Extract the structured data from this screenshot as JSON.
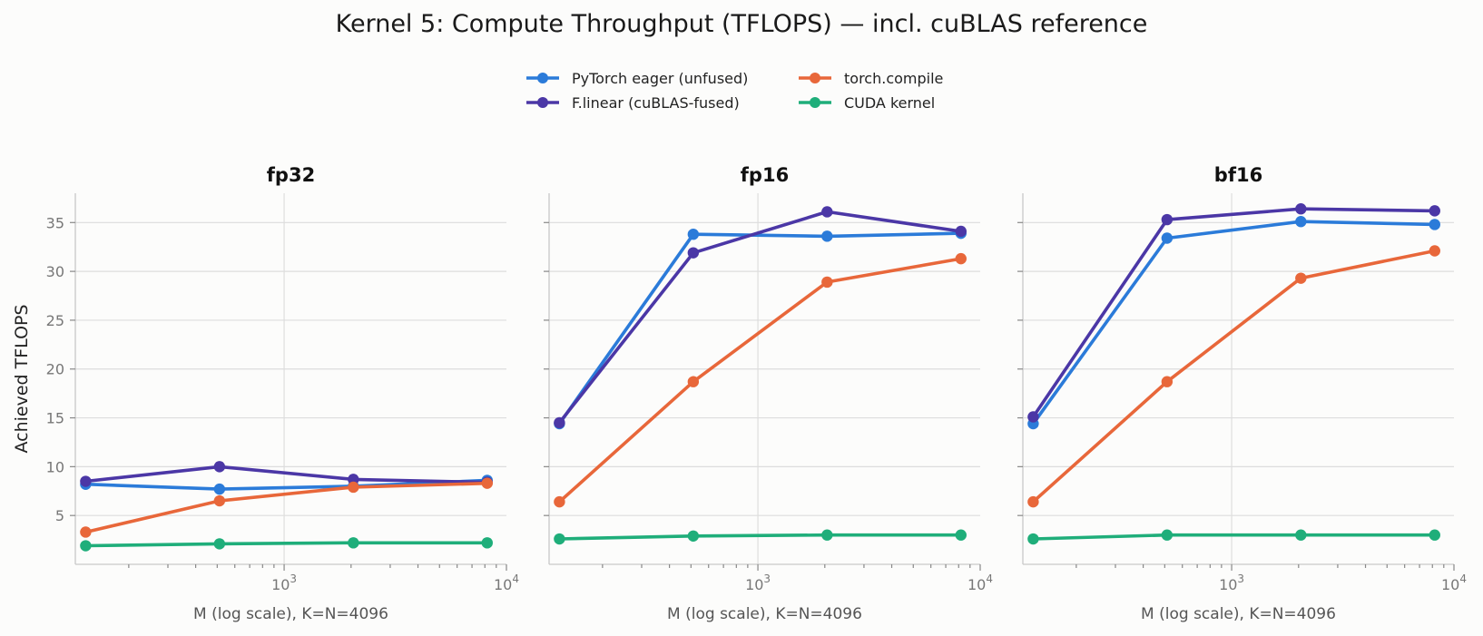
{
  "title": "Kernel 5: Compute Throughput (TFLOPS) — incl. cuBLAS reference",
  "legend": {
    "placement": "top-center",
    "columns": 2,
    "entries": [
      {
        "name": "PyTorch eager (unfused)",
        "color": "#2b7bd9"
      },
      {
        "name": "F.linear (cuBLAS-fused)",
        "color": "#4b37a6"
      },
      {
        "name": "torch.compile",
        "color": "#e8673a"
      },
      {
        "name": "CUDA kernel",
        "color": "#1fae7a"
      }
    ]
  },
  "chart_data": [
    {
      "type": "line",
      "title": "fp32",
      "xlabel": "M (log scale), K=N=4096",
      "ylabel": "Achieved TFLOPS",
      "xscale": "log",
      "xlim": [
        115,
        10000
      ],
      "ylim": [
        0,
        38
      ],
      "grid": true,
      "x": [
        128,
        512,
        2048,
        8192
      ],
      "xticks": [
        {
          "value": 1000,
          "base": "10",
          "exp": "3"
        },
        {
          "value": 10000,
          "base": "10",
          "exp": "4"
        }
      ],
      "yticks": [
        5,
        10,
        15,
        20,
        25,
        30,
        35
      ],
      "series": [
        {
          "name": "PyTorch eager (unfused)",
          "color": "#2b7bd9",
          "values": [
            8.2,
            7.7,
            8.0,
            8.6
          ]
        },
        {
          "name": "F.linear (cuBLAS-fused)",
          "color": "#4b37a6",
          "values": [
            8.5,
            10.0,
            8.7,
            8.4
          ]
        },
        {
          "name": "torch.compile",
          "color": "#e8673a",
          "values": [
            3.3,
            6.5,
            7.9,
            8.3
          ]
        },
        {
          "name": "CUDA kernel",
          "color": "#1fae7a",
          "values": [
            1.9,
            2.1,
            2.2,
            2.2
          ]
        }
      ]
    },
    {
      "type": "line",
      "title": "fp16",
      "xlabel": "M (log scale), K=N=4096",
      "ylabel": "",
      "xscale": "log",
      "xlim": [
        115,
        10000
      ],
      "ylim": [
        0,
        38
      ],
      "grid": true,
      "x": [
        128,
        512,
        2048,
        8192
      ],
      "xticks": [
        {
          "value": 1000,
          "base": "10",
          "exp": "3"
        },
        {
          "value": 10000,
          "base": "10",
          "exp": "4"
        }
      ],
      "yticks": [
        5,
        10,
        15,
        20,
        25,
        30,
        35
      ],
      "series": [
        {
          "name": "PyTorch eager (unfused)",
          "color": "#2b7bd9",
          "values": [
            14.4,
            33.8,
            33.6,
            33.9
          ]
        },
        {
          "name": "F.linear (cuBLAS-fused)",
          "color": "#4b37a6",
          "values": [
            14.5,
            31.9,
            36.1,
            34.1
          ]
        },
        {
          "name": "torch.compile",
          "color": "#e8673a",
          "values": [
            6.4,
            18.7,
            28.9,
            31.3
          ]
        },
        {
          "name": "CUDA kernel",
          "color": "#1fae7a",
          "values": [
            2.6,
            2.9,
            3.0,
            3.0
          ]
        }
      ]
    },
    {
      "type": "line",
      "title": "bf16",
      "xlabel": "M (log scale), K=N=4096",
      "ylabel": "",
      "xscale": "log",
      "xlim": [
        115,
        10000
      ],
      "ylim": [
        0,
        38
      ],
      "grid": true,
      "x": [
        128,
        512,
        2048,
        8192
      ],
      "xticks": [
        {
          "value": 1000,
          "base": "10",
          "exp": "3"
        },
        {
          "value": 10000,
          "base": "10",
          "exp": "4"
        }
      ],
      "yticks": [
        5,
        10,
        15,
        20,
        25,
        30,
        35
      ],
      "series": [
        {
          "name": "PyTorch eager (unfused)",
          "color": "#2b7bd9",
          "values": [
            14.4,
            33.4,
            35.1,
            34.8
          ]
        },
        {
          "name": "F.linear (cuBLAS-fused)",
          "color": "#4b37a6",
          "values": [
            15.1,
            35.3,
            36.4,
            36.2
          ]
        },
        {
          "name": "torch.compile",
          "color": "#e8673a",
          "values": [
            6.4,
            18.7,
            29.3,
            32.1
          ]
        },
        {
          "name": "CUDA kernel",
          "color": "#1fae7a",
          "values": [
            2.6,
            3.0,
            3.0,
            3.0
          ]
        }
      ]
    }
  ]
}
